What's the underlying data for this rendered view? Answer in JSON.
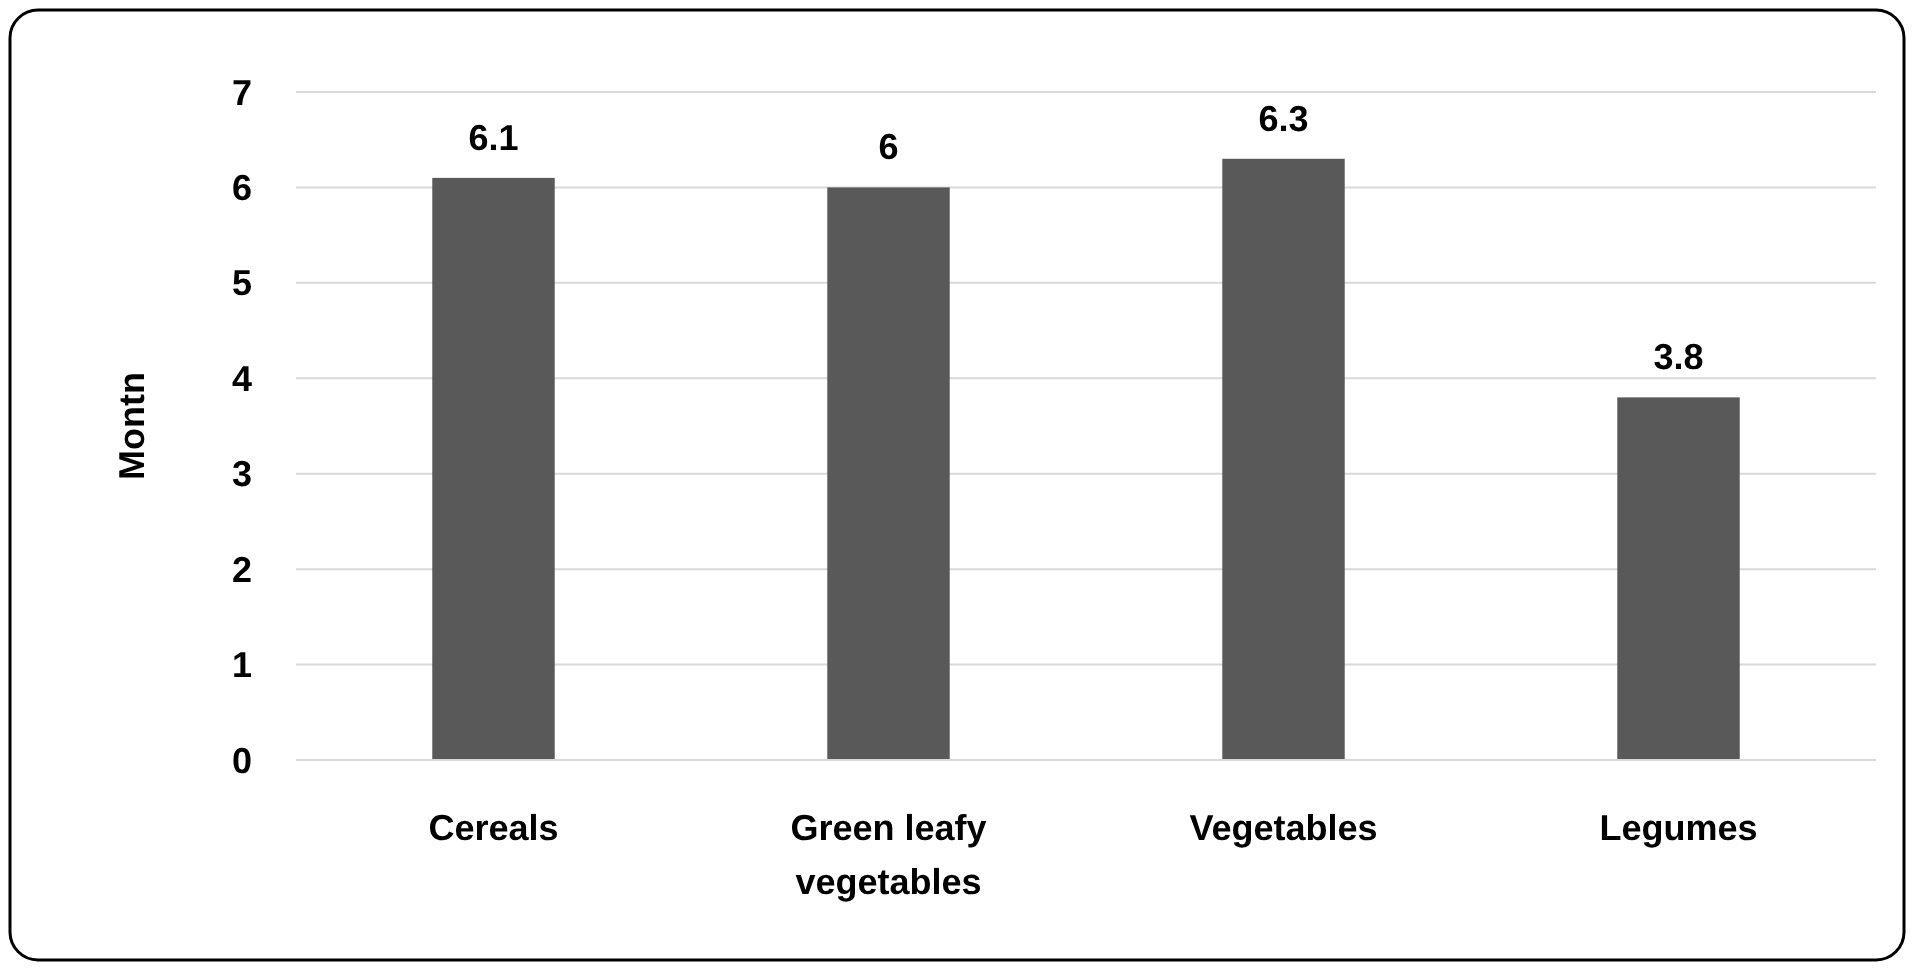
{
  "chart_data": {
    "type": "bar",
    "ylabel": "Montn",
    "categories": [
      "Cereals",
      "Green leafy vegetables",
      "Vegetables",
      "Legumes"
    ],
    "values": [
      6.1,
      6,
      6.3,
      3.8
    ],
    "color": "#595959",
    "ylim": [
      0,
      7
    ],
    "yticks": [
      0,
      1,
      2,
      3,
      4,
      5,
      6,
      7
    ],
    "grid": "y",
    "data_labels": true
  }
}
